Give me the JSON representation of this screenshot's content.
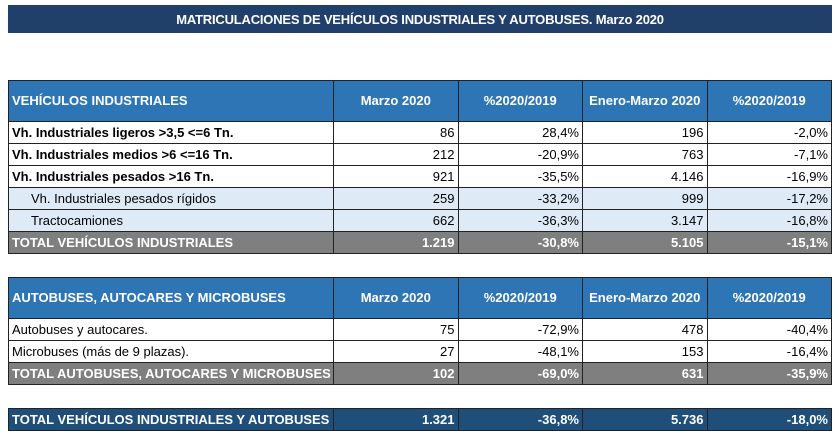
{
  "title": "MATRICULACIONES DE VEHÍCULOS INDUSTRIALES Y AUTOBUSES.  Marzo 2020",
  "columns": [
    "Marzo 2020",
    "%2020/2019",
    "Enero-Marzo 2020",
    "%2020/2019"
  ],
  "industrial": {
    "header": "VEHÍCULOS INDUSTRIALES",
    "rows": [
      {
        "label": "Vh. Industriales ligeros >3,5 <=6 Tn.",
        "v": [
          "86",
          "28,4%",
          "196",
          "-2,0%"
        ]
      },
      {
        "label": "Vh. Industriales medios >6  <=16 Tn.",
        "v": [
          "212",
          "-20,9%",
          "763",
          "-7,1%"
        ]
      },
      {
        "label": "Vh. Industriales  pesados >16 Tn.",
        "v": [
          "921",
          "-35,5%",
          "4.146",
          "-16,9%"
        ]
      },
      {
        "label": "Vh. Industriales pesados rígidos",
        "v": [
          "259",
          "-33,2%",
          "999",
          "-17,2%"
        ]
      },
      {
        "label": "Tractocamiones",
        "v": [
          "662",
          "-36,3%",
          "3.147",
          "-16,8%"
        ]
      }
    ],
    "total": {
      "label": "TOTAL VEHÍCULOS INDUSTRIALES",
      "v": [
        "1.219",
        "-30,8%",
        "5.105",
        "-15,1%"
      ]
    }
  },
  "buses": {
    "header": "AUTOBUSES, AUTOCARES Y MICROBUSES",
    "rows": [
      {
        "label": "Autobuses y autocares.",
        "v": [
          "75",
          "-72,9%",
          "478",
          "-40,4%"
        ]
      },
      {
        "label": "Microbuses (más de 9 plazas).",
        "v": [
          "27",
          "-48,1%",
          "153",
          "-16,4%"
        ]
      }
    ],
    "total": {
      "label": "TOTAL AUTOBUSES, AUTOCARES Y MICROBUSES",
      "v": [
        "102",
        "-69,0%",
        "631",
        "-35,9%"
      ]
    }
  },
  "grand_total": {
    "label": "TOTAL VEHÍCULOS INDUSTRIALES Y AUTOBUSES",
    "v": [
      "1.321",
      "-36,8%",
      "5.736",
      "-18,0%"
    ]
  },
  "colors": {
    "title": "#203f6b",
    "header": "#2e75b6",
    "total": "#7f7f7f",
    "subrow": "#deebf7",
    "grand": "#1f4e79"
  }
}
